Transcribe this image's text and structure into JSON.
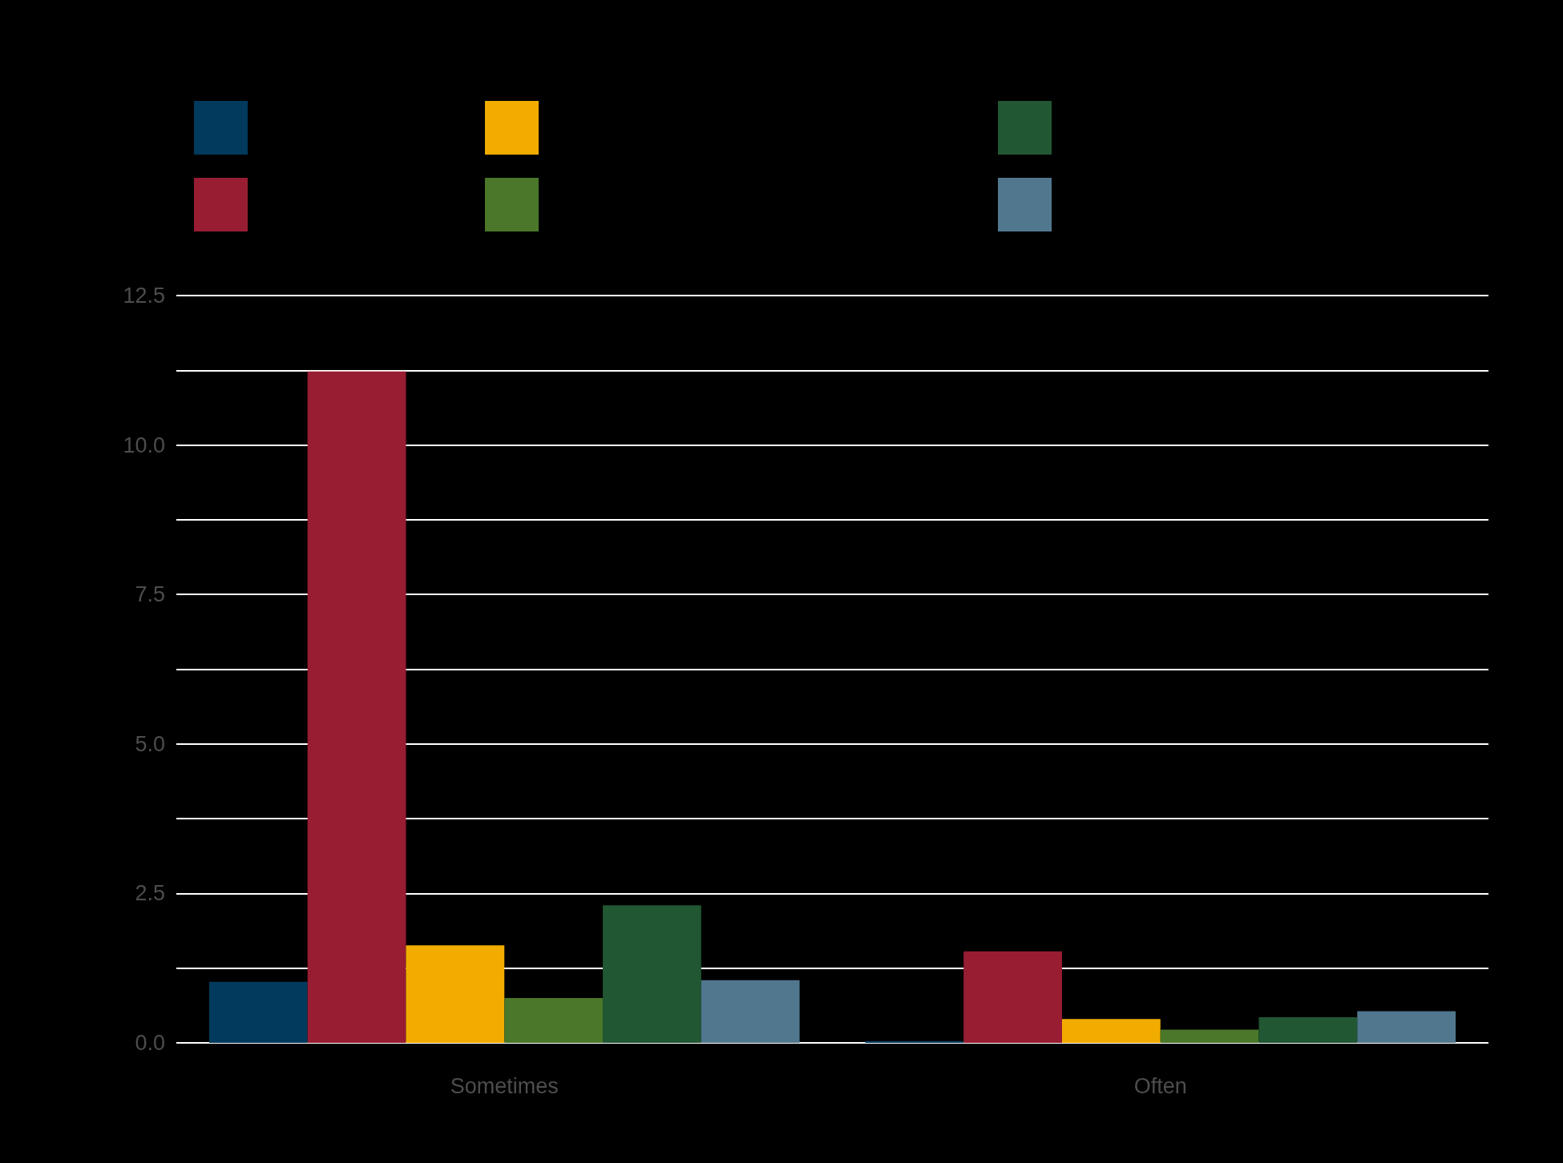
{
  "chart_data": {
    "type": "bar",
    "categories": [
      "Sometimes",
      "Often"
    ],
    "series": [
      {
        "color": "#003a5d",
        "values": [
          1.02,
          0.03
        ]
      },
      {
        "color": "#981d32",
        "values": [
          11.23,
          1.53
        ]
      },
      {
        "color": "#f2ac00",
        "values": [
          1.63,
          0.4
        ]
      },
      {
        "color": "#4a7729",
        "values": [
          0.75,
          0.22
        ]
      },
      {
        "color": "#215732",
        "values": [
          2.3,
          0.43
        ]
      },
      {
        "color": "#51778e",
        "values": [
          1.05,
          0.53
        ]
      }
    ],
    "ylim": [
      0,
      12.5
    ],
    "yticks": [
      {
        "value": 0,
        "label": "0.0"
      },
      {
        "value": 1.25,
        "label": null
      },
      2.5,
      {
        "value": 3.75,
        "label": null
      },
      {
        "value": 5,
        "label": "5.0"
      },
      {
        "value": 6.25,
        "label": null
      },
      7.5,
      {
        "value": 8.75,
        "label": null
      },
      {
        "value": 10,
        "label": "10.0"
      },
      {
        "value": 11.25,
        "label": null
      },
      12.5
    ],
    "grid": "y"
  }
}
